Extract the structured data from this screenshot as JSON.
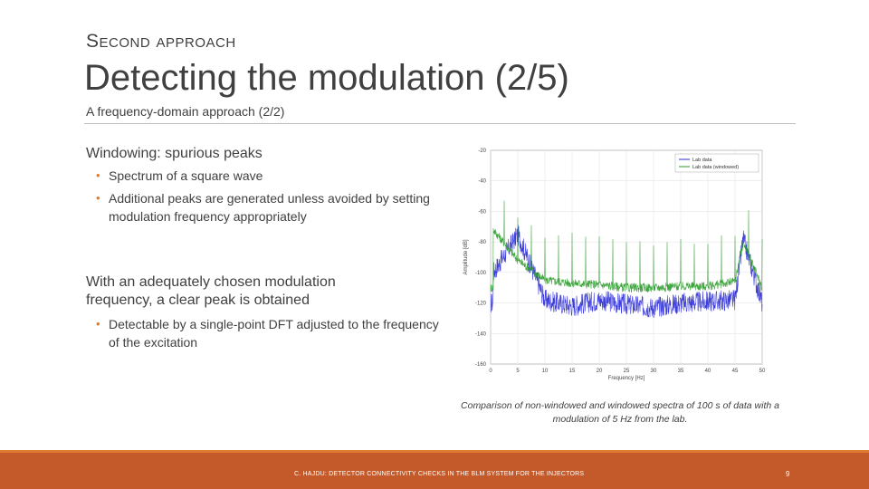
{
  "slide": {
    "section_label": "Second approach",
    "title": "Detecting the modulation (2/5)",
    "subtitle": "A frequency-domain approach (2/2)"
  },
  "block1": {
    "heading": "Windowing: spurious peaks",
    "bullets": [
      "Spectrum of a square wave",
      "Additional peaks are generated unless avoided by setting modulation frequency appropriately"
    ]
  },
  "block2": {
    "heading": "With an adequately chosen modulation frequency, a clear peak is obtained",
    "bullets": [
      "Detectable by a single-point DFT adjusted to the frequency of the excitation"
    ]
  },
  "caption": "Comparison of non-windowed and windowed spectra of 100 s of data with a modulation of 5 Hz from the lab.",
  "footer": {
    "text": "C. HAJDU: DETECTOR CONNECTIVITY CHECKS IN THE BLM SYSTEM FOR THE INJECTORS",
    "page": "9"
  },
  "colors": {
    "accent": "#c45a2a",
    "bullet": "#e27a2a",
    "series1": "#2a2ad6",
    "series2": "#2a9a2a"
  },
  "chart_data": {
    "type": "line",
    "xlabel": "Frequency [Hz]",
    "ylabel": "Amplitude [dB]",
    "xlim": [
      0,
      50
    ],
    "ylim": [
      -160,
      -20
    ],
    "xticks": [
      "0",
      "5",
      "10",
      "15",
      "20",
      "25",
      "30",
      "35",
      "40",
      "45",
      "50"
    ],
    "yticks": [
      "-20",
      "-40",
      "-60",
      "-80",
      "-100",
      "-120",
      "-140",
      "-160"
    ],
    "grid": true,
    "legend": "top-right",
    "series": [
      {
        "name": "Lab data",
        "color": "#2a2ad6",
        "x": [
          0.5,
          5,
          10,
          15,
          20,
          25,
          30,
          35,
          40,
          45,
          46.5,
          50
        ],
        "values": [
          -100,
          -75,
          -118,
          -122,
          -118,
          -121,
          -123,
          -120,
          -119,
          -118,
          -78,
          -120
        ]
      },
      {
        "name": "Lab data (windowed)",
        "color": "#2a9a2a",
        "x": [
          0.5,
          5,
          10,
          15,
          20,
          25,
          30,
          35,
          40,
          45,
          46.5,
          50
        ],
        "values": [
          -72,
          -92,
          -105,
          -107,
          -108,
          -110,
          -110,
          -109,
          -109,
          -106,
          -80,
          -110
        ]
      }
    ]
  }
}
